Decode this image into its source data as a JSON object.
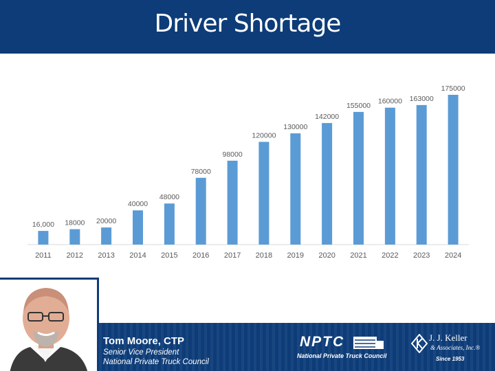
{
  "slide": {
    "title": "Driver Shortage"
  },
  "speaker": {
    "name": "Tom Moore, CTP",
    "role": "Senior Vice President",
    "org": "National Private Truck Council"
  },
  "logos": {
    "nptc_mark": "NPTC",
    "nptc_sub": "National Private Truck Council",
    "jjk_name": "J. J. Keller",
    "jjk_sub": "& Associates, Inc.®",
    "jjk_since": "Since 1953"
  },
  "colors": {
    "header": "#0d3c78",
    "bar": "#5b9bd5"
  },
  "chart_data": {
    "type": "bar",
    "title": "",
    "xlabel": "",
    "ylabel": "",
    "categories": [
      "2011",
      "2012",
      "2013",
      "2014",
      "2015",
      "2016",
      "2017",
      "2018",
      "2019",
      "2020",
      "2021",
      "2022",
      "2023",
      "2024"
    ],
    "values": [
      16000,
      18000,
      20000,
      40000,
      48000,
      78000,
      98000,
      120000,
      130000,
      142000,
      155000,
      160000,
      163000,
      175000
    ],
    "value_labels": [
      "16,000",
      "18000",
      "20000",
      "40000",
      "48000",
      "78000",
      "98000",
      "120000",
      "130000",
      "142000",
      "155000",
      "160000",
      "163000",
      "175000"
    ],
    "ylim": [
      0,
      175000
    ],
    "grid": false,
    "legend": "none"
  }
}
